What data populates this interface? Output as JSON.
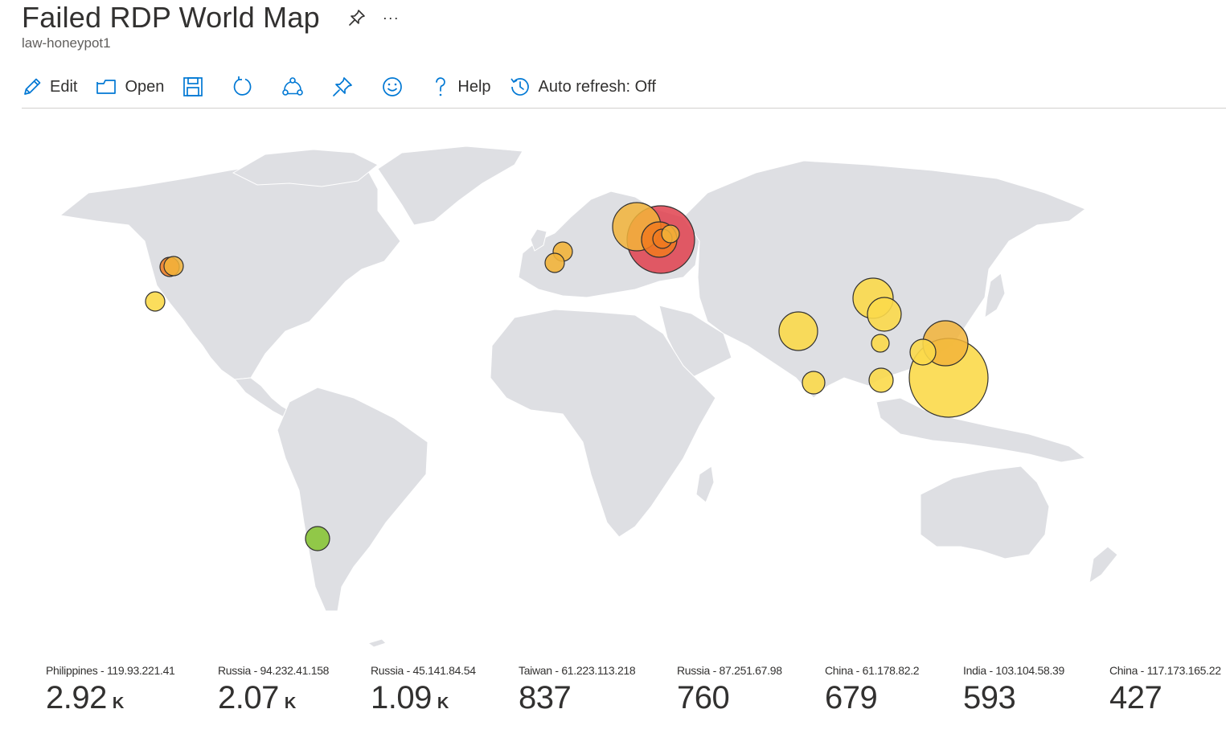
{
  "header": {
    "title": "Failed RDP World Map",
    "subtitle": "law-honeypot1",
    "more_label": "···"
  },
  "toolbar": {
    "edit_label": "Edit",
    "open_label": "Open",
    "help_label": "Help",
    "auto_refresh_label": "Auto refresh: Off"
  },
  "colors": {
    "land": "#dedfe3",
    "accent": "#0078d4",
    "bubble_red": "#e0414d",
    "bubble_orange": "#f07a1f",
    "bubble_light_orange": "#f2b43a",
    "bubble_yellow": "#fbd94a",
    "bubble_green": "#8cc63f"
  },
  "tiles": [
    {
      "label": "Philippines - 119.93.221.41",
      "value": "2.92",
      "unit": "K"
    },
    {
      "label": "Russia - 94.232.41.158",
      "value": "2.07",
      "unit": "K"
    },
    {
      "label": "Russia - 45.141.84.54",
      "value": "1.09",
      "unit": "K"
    },
    {
      "label": "Taiwan - 61.223.113.218",
      "value": "837",
      "unit": ""
    },
    {
      "label": "Russia - 87.251.67.98",
      "value": "760",
      "unit": ""
    },
    {
      "label": "China - 61.178.82.2",
      "value": "679",
      "unit": ""
    },
    {
      "label": "India - 103.104.58.39",
      "value": "593",
      "unit": ""
    },
    {
      "label": "China - 117.173.165.22",
      "value": "427",
      "unit": ""
    }
  ]
}
